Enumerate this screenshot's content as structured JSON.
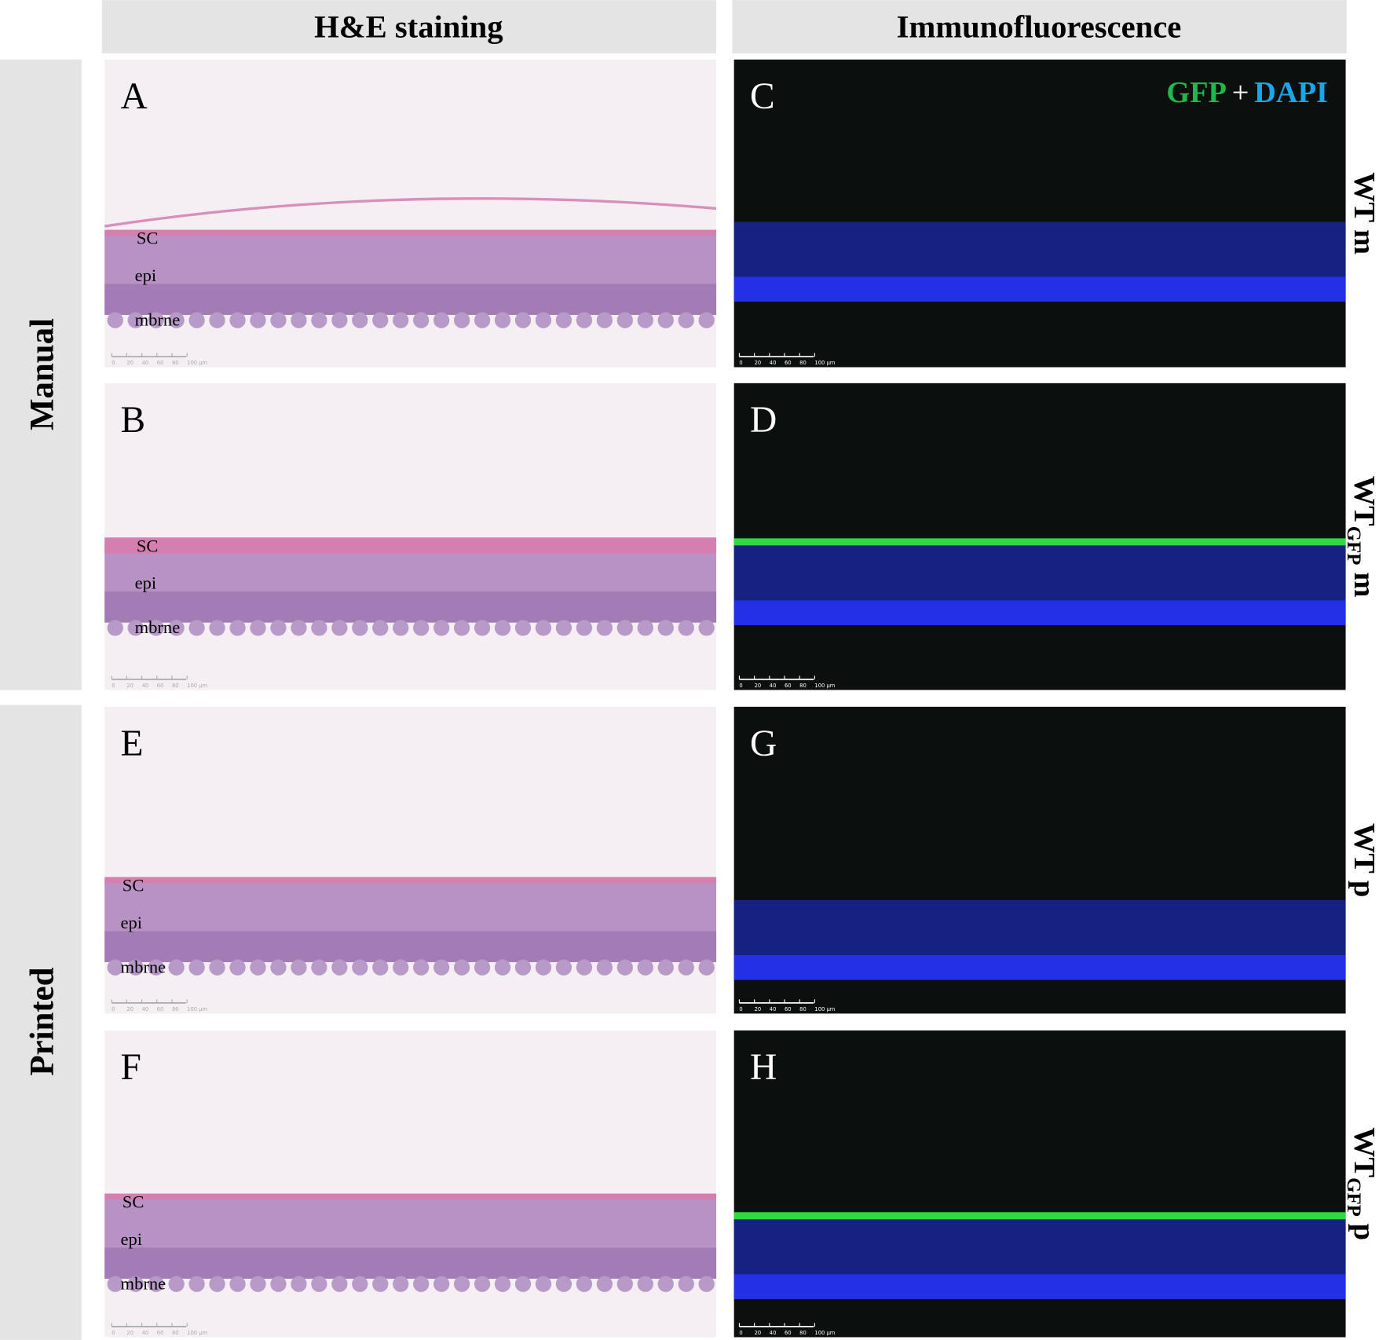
{
  "headers": [
    "H&E staining",
    "Immunofluorescence"
  ],
  "row_groups": [
    "Manual",
    "Printed"
  ],
  "legend": {
    "gfp": "GFP",
    "plus": "+",
    "dapi": "DAPI"
  },
  "scale_bar": [
    "0",
    "20",
    "40",
    "60",
    "80",
    "100 µm"
  ],
  "he_panels": [
    {
      "letter": "A",
      "labels": [
        "SC",
        "epi",
        "mbrne"
      ]
    },
    {
      "letter": "B",
      "labels": [
        "SC",
        "epi",
        "mbrne"
      ]
    },
    {
      "letter": "E",
      "labels": [
        "SC",
        "epi",
        "mbrne"
      ]
    },
    {
      "letter": "F",
      "labels": [
        "SC",
        "epi",
        "mbrne"
      ]
    }
  ],
  "if_panels": [
    {
      "letter": "C",
      "name": "WT",
      "suffix": "m"
    },
    {
      "letter": "D",
      "name": "WT",
      "subscript": "GFP",
      "suffix": "m"
    },
    {
      "letter": "G",
      "name": "WT",
      "suffix": "p"
    },
    {
      "letter": "H",
      "name": "WT",
      "subscript": "GFP",
      "suffix": "p"
    }
  ]
}
